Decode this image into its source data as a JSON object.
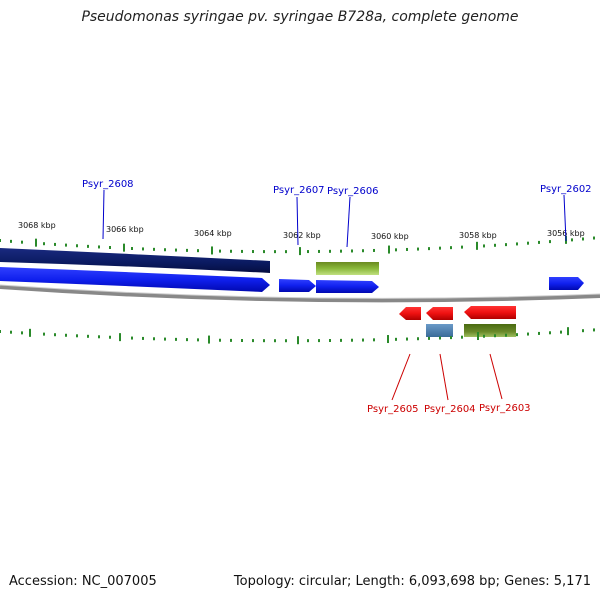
{
  "title": "Pseudomonas syringae pv. syringae B728a, complete genome",
  "footer": {
    "accession": "Accession: NC_007005",
    "summary": "Topology: circular; Length: 6,093,698 bp; Genes: 5,171"
  },
  "ticks": [
    "3068 kbp",
    "3066 kbp",
    "3064 kbp",
    "3062 kbp",
    "3060 kbp",
    "3058 kbp",
    "3056 kbp"
  ],
  "genes_top": [
    "Psyr_2608",
    "Psyr_2607",
    "Psyr_2606",
    "Psyr_2602"
  ],
  "genes_bottom": [
    "Psyr_2605",
    "Psyr_2604",
    "Psyr_2603"
  ],
  "colors": {
    "forward_label": "#0000cc",
    "reverse_label": "#cc0000",
    "forward_gene": "#1020ee",
    "reverse_gene": "#ee1111",
    "tick": "#2a8a2a",
    "dark_band": "#0a1a60",
    "green_feature": "#7aa52a",
    "steel_feature": "#4a7aa8",
    "backbone": "#888888"
  }
}
